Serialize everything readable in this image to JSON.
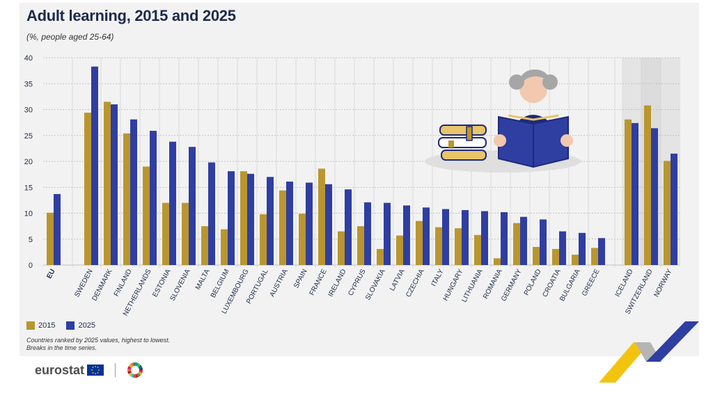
{
  "header": {
    "title": "Adult learning, 2015 and 2025",
    "subtitle": "(%, people aged 25-64)"
  },
  "legend": [
    {
      "label": "2015",
      "color": "#b9962f"
    },
    {
      "label": "2025",
      "color": "#2f3ea1"
    }
  ],
  "notes": {
    "line1": "Countries ranked by 2025 values, highest to lowest.",
    "line2": "Breaks in the time series."
  },
  "footer": {
    "logo_text": "eurostat",
    "flag_icon": "eu-flag-icon",
    "sdg_icon": "sdg-wheel-icon",
    "corner_icon": "eurostat-corner-chevron-icon"
  },
  "colors": {
    "s2015": "#b9962f",
    "s2025": "#2f3ea1",
    "efta_band": "#dcdcdc",
    "axis_text": "#1e2a4a"
  },
  "chart_data": {
    "type": "bar",
    "title": "Adult learning, 2015 and 2025",
    "subtitle": "(%, people aged 25-64)",
    "xlabel": "",
    "ylabel": "",
    "ylim": [
      0,
      40
    ],
    "yticks": [
      0,
      5,
      10,
      15,
      20,
      25,
      30,
      35,
      40
    ],
    "grid": true,
    "legend_position": "bottom-left",
    "categories": [
      "EU",
      "SWEDEN",
      "DENMARK",
      "FINLAND",
      "NETHERLANDS",
      "ESTONIA",
      "SLOVENIA",
      "MALTA",
      "BELGIUM",
      "LUXEMBOURG",
      "PORTUGAL",
      "AUSTRIA",
      "SPAIN",
      "FRANCE",
      "IRELAND",
      "CYPRUS",
      "SLOVAKIA",
      "LATVIA",
      "CZECHIA",
      "ITALY",
      "HUNGARY",
      "LITHUANIA",
      "ROMANIA",
      "GERMANY",
      "POLAND",
      "CROATIA",
      "BULGARIA",
      "GREECE",
      "ICELAND",
      "SWITZERLAND",
      "NORWAY"
    ],
    "groups": [
      "eu",
      "member",
      "member",
      "member",
      "member",
      "member",
      "member",
      "member",
      "member",
      "member",
      "member",
      "member",
      "member",
      "member",
      "member",
      "member",
      "member",
      "member",
      "member",
      "member",
      "member",
      "member",
      "member",
      "member",
      "member",
      "member",
      "member",
      "member",
      "efta",
      "efta",
      "efta"
    ],
    "series": [
      {
        "name": "2015",
        "color": "#b9962f",
        "values": [
          10.1,
          29.4,
          31.5,
          25.4,
          19.0,
          12.0,
          12.0,
          7.5,
          6.9,
          18.1,
          9.8,
          14.4,
          9.9,
          18.6,
          6.5,
          7.5,
          3.1,
          5.7,
          8.5,
          7.3,
          7.1,
          5.8,
          1.3,
          8.1,
          3.5,
          3.1,
          2.0,
          3.3,
          28.1,
          30.8,
          20.1
        ]
      },
      {
        "name": "2025",
        "color": "#2f3ea1",
        "values": [
          13.7,
          38.3,
          31.0,
          28.1,
          25.9,
          23.8,
          22.8,
          19.8,
          18.1,
          17.6,
          17.0,
          16.1,
          15.9,
          15.6,
          14.6,
          12.1,
          12.0,
          11.5,
          11.1,
          10.8,
          10.6,
          10.4,
          10.2,
          9.3,
          8.8,
          6.5,
          6.2,
          5.2,
          27.4,
          26.4,
          21.5
        ]
      }
    ]
  }
}
